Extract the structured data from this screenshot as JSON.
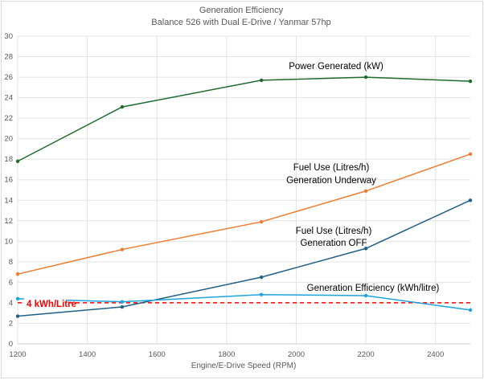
{
  "chart_data": {
    "type": "line",
    "title": "Generation Efficiency",
    "subtitle": "Balance 526 with Dual E-Drive / Yanmar 57hp",
    "xlabel": "Engine/E-Drive Speed (RPM)",
    "ylabel": "",
    "xlim": [
      1200,
      2500
    ],
    "ylim": [
      0,
      30
    ],
    "xticks": [
      1200,
      1400,
      1600,
      1800,
      2000,
      2200,
      2400
    ],
    "yticks": [
      0,
      2,
      4,
      6,
      8,
      10,
      12,
      14,
      16,
      18,
      20,
      22,
      24,
      26,
      28,
      30
    ],
    "grid": true,
    "x": [
      1200,
      1500,
      1900,
      2200,
      2500
    ],
    "series": [
      {
        "name": "Power Generated (kW)",
        "label_lines": [
          "Power Generated (kW)"
        ],
        "color": "#1e6b2e",
        "values": [
          17.8,
          23.1,
          25.7,
          26.0,
          25.6
        ],
        "markers": true
      },
      {
        "name": "Fuel Use (Litres/h) Generation Underway",
        "label_lines": [
          "Fuel Use (Litres/h)",
          "Generation Underway"
        ],
        "color": "#ed7d31",
        "values": [
          6.8,
          9.2,
          11.9,
          14.9,
          18.5
        ],
        "markers": true
      },
      {
        "name": "Fuel Use (Litres/h) Generation OFF",
        "label_lines": [
          "Fuel Use (Litres/h)",
          "Generation OFF"
        ],
        "color": "#1f5f86",
        "values": [
          2.7,
          3.6,
          6.5,
          9.3,
          14.0
        ],
        "markers": true
      },
      {
        "name": "Generation Efficiency (kWh/litre)",
        "label_lines": [
          "Generation Efficiency (kWh/litre)"
        ],
        "color": "#1ea3dc",
        "values": [
          4.4,
          4.1,
          4.8,
          4.7,
          3.3
        ],
        "markers": true
      }
    ],
    "reference_line": {
      "label": "4 kWh/Litre",
      "value": 4,
      "color": "#ff0000",
      "style": "dashed"
    }
  }
}
